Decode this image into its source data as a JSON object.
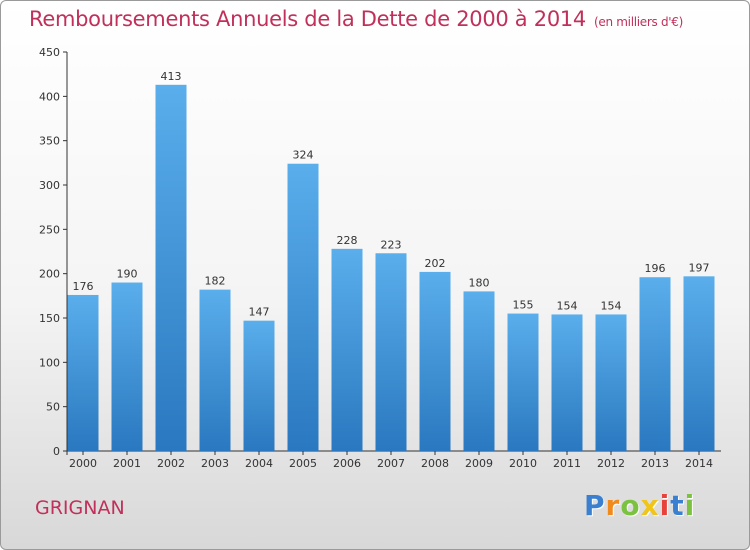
{
  "header": {
    "title": "Remboursements Annuels de la Dette de 2000 à 2014",
    "unit": "(en milliers d'€)"
  },
  "footer": {
    "town": "GRIGNAN",
    "logo_letters": [
      "P",
      "r",
      "o",
      "x",
      "i",
      "t",
      "i"
    ]
  },
  "colors": {
    "title": "#c0305a",
    "bar_top": "#5aaeeb",
    "bar_bottom": "#2a78c0",
    "axis": "#333333"
  },
  "chart_data": {
    "type": "bar",
    "categories": [
      "2000",
      "2001",
      "2002",
      "2003",
      "2004",
      "2005",
      "2006",
      "2007",
      "2008",
      "2009",
      "2010",
      "2011",
      "2012",
      "2013",
      "2014"
    ],
    "values": [
      176,
      190,
      413,
      182,
      147,
      324,
      228,
      223,
      202,
      180,
      155,
      154,
      154,
      196,
      197
    ],
    "value_labels": [
      "176",
      "190",
      "413",
      "182",
      "147",
      "324",
      "228",
      "223",
      "202",
      "180",
      "155",
      "154",
      "154",
      "196",
      "197"
    ],
    "y_ticks": [
      0,
      50,
      100,
      150,
      200,
      250,
      300,
      350,
      400,
      450
    ],
    "ylim": [
      0,
      450
    ],
    "grid": false,
    "legend": "none"
  }
}
